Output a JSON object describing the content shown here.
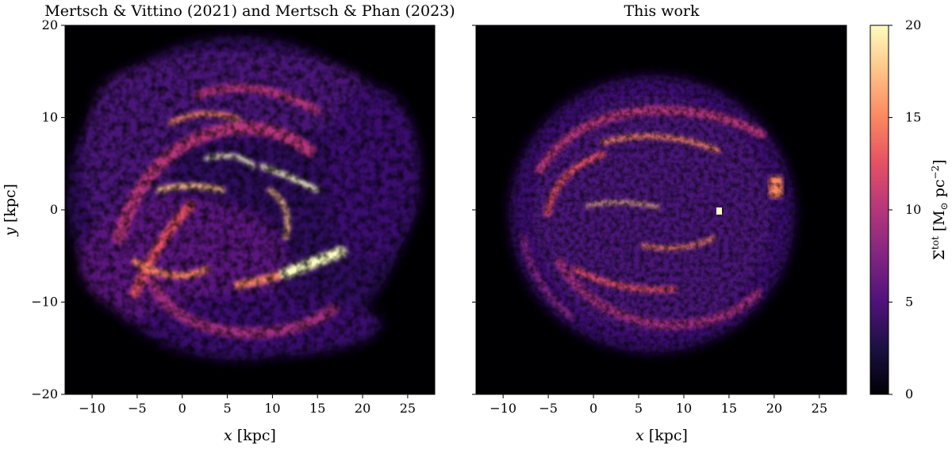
{
  "chart_data": [
    {
      "type": "heatmap",
      "title": "Mertsch & Vittino (2021) and Mertsch & Phan (2023)",
      "xlabel_var": "x",
      "xlabel_unit": " [kpc]",
      "ylabel_var": "y",
      "ylabel_unit": " [kpc]",
      "xlim": [
        -13,
        28
      ],
      "ylim": [
        -20,
        20
      ],
      "xticks": [
        -10,
        -5,
        0,
        5,
        10,
        15,
        20,
        25
      ],
      "yticks": [
        -20,
        -10,
        0,
        10,
        20
      ],
      "colormap": "magma",
      "structure": "spiral arm pattern centered near (0,0), bright complexes at x≈2–12 kpc, bright arm segment near (13,-4)"
    },
    {
      "type": "heatmap",
      "title": "This work",
      "xlabel_var": "x",
      "xlabel_unit": " [kpc]",
      "xlim": [
        -13,
        28
      ],
      "ylim": [
        -20,
        20
      ],
      "xticks": [
        -10,
        -5,
        0,
        5,
        10,
        15,
        20,
        25
      ],
      "yticks": [
        -20,
        -10,
        0,
        10,
        20
      ],
      "colormap": "magma",
      "structure": "roughly circular disc of radius ≈ 15 kpc centered near (5,0) with filamentary arms; compact bright spot at (14.2,0)"
    }
  ],
  "colorbar": {
    "label_main": "Σ",
    "label_sup": "tot",
    "label_unit_open": " [M",
    "label_sun_sub": "⊙",
    "label_unit_rest": " pc",
    "label_exp": "−2",
    "label_close": "]",
    "range": [
      0,
      20
    ],
    "ticks": [
      0,
      5,
      10,
      15,
      20
    ],
    "colors": [
      "#000004",
      "#1c1044",
      "#4f127b",
      "#812581",
      "#b5367a",
      "#e55064",
      "#fb8761",
      "#fec287",
      "#fcfdbf"
    ]
  }
}
